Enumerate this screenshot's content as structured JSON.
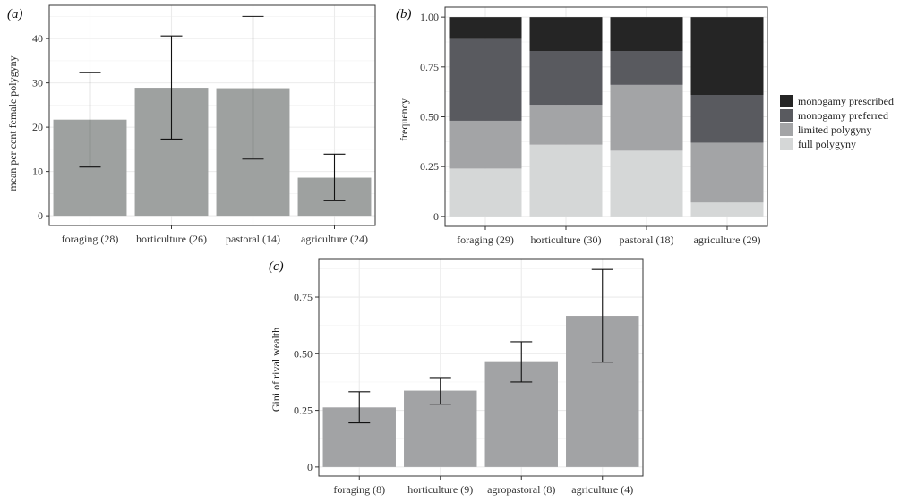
{
  "chart_data": [
    {
      "panel": "(a)",
      "type": "bar",
      "categories": [
        "foraging (28)",
        "horticulture (26)",
        "pastoral (14)",
        "agriculture (24)"
      ],
      "values": [
        21.7,
        28.9,
        28.8,
        8.6
      ],
      "error_low": [
        11.0,
        17.3,
        12.8,
        3.4
      ],
      "error_high": [
        32.3,
        40.6,
        45.0,
        13.9
      ],
      "ylabel": "mean per cent female polygyny",
      "xlabel": "",
      "ylim": [
        -2.2,
        47.5
      ],
      "yticks": [
        0,
        10,
        20,
        30,
        40
      ],
      "grid": true,
      "bar_color": "#9ea1a0"
    },
    {
      "panel": "(b)",
      "type": "bar",
      "stacked": true,
      "categories": [
        "foraging (29)",
        "horticulture (30)",
        "pastoral (18)",
        "agriculture (29)"
      ],
      "series": [
        {
          "name": "full polygyny",
          "color": "#d5d7d7",
          "values": [
            0.24,
            0.36,
            0.33,
            0.07
          ]
        },
        {
          "name": "limited polygyny",
          "color": "#a3a4a6",
          "values": [
            0.24,
            0.2,
            0.33,
            0.3
          ]
        },
        {
          "name": "monogamy preferred",
          "color": "#595a5f",
          "values": [
            0.41,
            0.27,
            0.17,
            0.24
          ]
        },
        {
          "name": "monogamy prescribed",
          "color": "#252525",
          "values": [
            0.11,
            0.17,
            0.17,
            0.39
          ]
        }
      ],
      "ylabel": "frequency",
      "xlabel": "",
      "ylim": [
        -0.05,
        1.05
      ],
      "yticks": [
        0,
        0.25,
        0.5,
        0.75,
        1.0
      ],
      "ytick_labels": [
        "0",
        "0.25",
        "0.50",
        "0.75",
        "1.00"
      ],
      "legend_position": "right",
      "grid": true
    },
    {
      "panel": "(c)",
      "type": "bar",
      "categories": [
        "foraging (8)",
        "horticulture (9)",
        "agropastoral (8)",
        "agriculture (4)"
      ],
      "values": [
        0.263,
        0.337,
        0.467,
        0.667
      ],
      "error_low": [
        0.195,
        0.277,
        0.375,
        0.463
      ],
      "error_high": [
        0.332,
        0.395,
        0.553,
        0.872
      ],
      "ylabel": "Gini of rival wealth",
      "xlabel": "",
      "ylim": [
        -0.04,
        0.92
      ],
      "yticks": [
        0,
        0.25,
        0.5,
        0.75
      ],
      "ytick_labels": [
        "0",
        "0.25",
        "0.50",
        "0.75"
      ],
      "grid": true,
      "bar_color": "#a2a3a5"
    }
  ]
}
